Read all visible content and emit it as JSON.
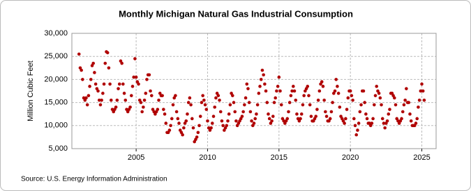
{
  "chart_data": {
    "type": "scatter",
    "title": "Monthly Michigan Natural Gas Industrial Consumption",
    "y_label": "Million Cubic Feet",
    "source": "Source: U.S. Energy Information Administration",
    "color": "#b00000",
    "grid": true,
    "xlim": [
      2000.5,
      2026
    ],
    "ylim": [
      5000,
      30000
    ],
    "xticks": [
      2005,
      2010,
      2015,
      2020,
      2025
    ],
    "yticks": [
      {
        "value": 5000,
        "label": "5,000"
      },
      {
        "value": 10000,
        "label": "10,000"
      },
      {
        "value": 15000,
        "label": "15,000"
      },
      {
        "value": 20000,
        "label": "20,000"
      },
      {
        "value": 25000,
        "label": "25,000"
      },
      {
        "value": 30000,
        "label": "30,000"
      }
    ],
    "x": [
      2001,
      2001.083,
      2001.167,
      2001.25,
      2001.333,
      2001.417,
      2001.5,
      2001.583,
      2001.667,
      2001.75,
      2001.833,
      2001.917,
      2002,
      2002.083,
      2002.167,
      2002.25,
      2002.333,
      2002.417,
      2002.5,
      2002.583,
      2002.667,
      2002.75,
      2002.833,
      2002.917,
      2003,
      2003.083,
      2003.167,
      2003.25,
      2003.333,
      2003.417,
      2003.5,
      2003.583,
      2003.667,
      2003.75,
      2003.833,
      2003.917,
      2004,
      2004.083,
      2004.167,
      2004.25,
      2004.333,
      2004.417,
      2004.5,
      2004.583,
      2004.667,
      2004.75,
      2004.833,
      2004.917,
      2005,
      2005.083,
      2005.167,
      2005.25,
      2005.333,
      2005.417,
      2005.5,
      2005.583,
      2005.667,
      2005.75,
      2005.833,
      2005.917,
      2006,
      2006.083,
      2006.167,
      2006.25,
      2006.333,
      2006.417,
      2006.5,
      2006.583,
      2006.667,
      2006.75,
      2006.833,
      2006.917,
      2007,
      2007.083,
      2007.167,
      2007.25,
      2007.333,
      2007.417,
      2007.5,
      2007.583,
      2007.667,
      2007.75,
      2007.833,
      2007.917,
      2008,
      2008.083,
      2008.167,
      2008.25,
      2008.333,
      2008.417,
      2008.5,
      2008.583,
      2008.667,
      2008.75,
      2008.833,
      2008.917,
      2009,
      2009.083,
      2009.167,
      2009.25,
      2009.333,
      2009.417,
      2009.5,
      2009.583,
      2009.667,
      2009.75,
      2009.833,
      2009.917,
      2010,
      2010.083,
      2010.167,
      2010.25,
      2010.333,
      2010.417,
      2010.5,
      2010.583,
      2010.667,
      2010.75,
      2010.833,
      2010.917,
      2011,
      2011.083,
      2011.167,
      2011.25,
      2011.333,
      2011.417,
      2011.5,
      2011.583,
      2011.667,
      2011.75,
      2011.833,
      2011.917,
      2012,
      2012.083,
      2012.167,
      2012.25,
      2012.333,
      2012.417,
      2012.5,
      2012.583,
      2012.667,
      2012.75,
      2012.833,
      2012.917,
      2013,
      2013.083,
      2013.167,
      2013.25,
      2013.333,
      2013.417,
      2013.5,
      2013.583,
      2013.667,
      2013.75,
      2013.833,
      2013.917,
      2014,
      2014.083,
      2014.167,
      2014.25,
      2014.333,
      2014.417,
      2014.5,
      2014.583,
      2014.667,
      2014.75,
      2014.833,
      2014.917,
      2015,
      2015.083,
      2015.167,
      2015.25,
      2015.333,
      2015.417,
      2015.5,
      2015.583,
      2015.667,
      2015.75,
      2015.833,
      2015.917,
      2016,
      2016.083,
      2016.167,
      2016.25,
      2016.333,
      2016.417,
      2016.5,
      2016.583,
      2016.667,
      2016.75,
      2016.833,
      2016.917,
      2017,
      2017.083,
      2017.167,
      2017.25,
      2017.333,
      2017.417,
      2017.5,
      2017.583,
      2017.667,
      2017.75,
      2017.833,
      2017.917,
      2018,
      2018.083,
      2018.167,
      2018.25,
      2018.333,
      2018.417,
      2018.5,
      2018.583,
      2018.667,
      2018.75,
      2018.833,
      2018.917,
      2019,
      2019.083,
      2019.167,
      2019.25,
      2019.333,
      2019.417,
      2019.5,
      2019.583,
      2019.667,
      2019.75,
      2019.833,
      2019.917,
      2020,
      2020.083,
      2020.167,
      2020.25,
      2020.333,
      2020.417,
      2020.5,
      2020.583,
      2020.667,
      2020.75,
      2020.833,
      2020.917,
      2021,
      2021.083,
      2021.167,
      2021.25,
      2021.333,
      2021.417,
      2021.5,
      2021.583,
      2021.667,
      2021.75,
      2021.833,
      2021.917,
      2022,
      2022.083,
      2022.167,
      2022.25,
      2022.333,
      2022.417,
      2022.5,
      2022.583,
      2022.667,
      2022.75,
      2022.833,
      2022.917,
      2023,
      2023.083,
      2023.167,
      2023.25,
      2023.333,
      2023.417,
      2023.5,
      2023.583,
      2023.667,
      2023.75,
      2023.833,
      2023.917,
      2024,
      2024.083,
      2024.167,
      2024.25,
      2024.333,
      2024.417,
      2024.5,
      2024.583,
      2024.667,
      2024.75,
      2024.833,
      2024.917,
      2025,
      2025.083,
      2025.167
    ],
    "values": [
      25500,
      22500,
      22000,
      20000,
      16000,
      15500,
      16000,
      14500,
      16500,
      18500,
      20000,
      23000,
      23500,
      21500,
      19000,
      18000,
      17500,
      15500,
      14500,
      15500,
      17000,
      19000,
      23500,
      26000,
      25800,
      22500,
      19000,
      15500,
      13500,
      13000,
      13500,
      14000,
      15500,
      18000,
      19000,
      24000,
      23500,
      19000,
      17000,
      15500,
      13500,
      13000,
      13500,
      14000,
      16500,
      18500,
      20500,
      24500,
      20500,
      19500,
      19000,
      15500,
      15000,
      13000,
      14000,
      15500,
      17000,
      20000,
      21000,
      21000,
      17500,
      16500,
      13500,
      13000,
      12500,
      13000,
      13500,
      15500,
      17000,
      16500,
      16500,
      13500,
      12500,
      10500,
      8500,
      8500,
      9000,
      10000,
      11500,
      14500,
      16000,
      16500,
      13000,
      11500,
      10500,
      9000,
      8500,
      8000,
      9500,
      10500,
      11000,
      12500,
      15000,
      16000,
      14500,
      11500,
      9500,
      6500,
      7000,
      7500,
      8500,
      10000,
      12000,
      15000,
      16500,
      15500,
      14500,
      13500,
      11000,
      9500,
      9000,
      9500,
      10500,
      12000,
      14000,
      16000,
      17000,
      16500,
      15500,
      13000,
      11000,
      10000,
      9000,
      9500,
      10000,
      11000,
      12500,
      14500,
      17000,
      16500,
      15000,
      13000,
      11000,
      10000,
      10500,
      11000,
      11500,
      12000,
      13000,
      14500,
      16000,
      19000,
      18000,
      15000,
      13000,
      11000,
      10000,
      10500,
      11500,
      12500,
      14500,
      17000,
      18500,
      20000,
      22000,
      21000,
      19000,
      17500,
      15000,
      12500,
      11500,
      10500,
      11000,
      12000,
      15000,
      16000,
      17500,
      18500,
      20500,
      17500,
      14500,
      11500,
      11000,
      10500,
      11000,
      11500,
      13000,
      15000,
      16500,
      17500,
      18500,
      17500,
      15500,
      12500,
      11500,
      11000,
      11500,
      12500,
      14500,
      16500,
      17500,
      18000,
      18500,
      16500,
      14500,
      12000,
      11000,
      11000,
      11500,
      12000,
      13500,
      15500,
      17500,
      19000,
      19500,
      18500,
      15500,
      13000,
      12000,
      11000,
      11000,
      11500,
      13000,
      15000,
      17000,
      17500,
      20000,
      18500,
      17000,
      14000,
      12000,
      11500,
      11000,
      10500,
      11500,
      13500,
      16000,
      17500,
      17500,
      16500,
      15500,
      11500,
      10000,
      8000,
      9000,
      10500,
      13000,
      14500,
      17500,
      17500,
      15000,
      12500,
      11500,
      10500,
      10500,
      10000,
      10500,
      11500,
      14500,
      16500,
      18500,
      17500,
      17000,
      16000,
      14500,
      11500,
      10500,
      9500,
      10500,
      11000,
      12500,
      13500,
      17000,
      17000,
      16500,
      16000,
      14500,
      11500,
      11000,
      10500,
      11000,
      11500,
      13000,
      14500,
      15500,
      18000,
      15000,
      15000,
      12500,
      11000,
      10000,
      10000,
      10000,
      10500,
      11500,
      14000,
      15500,
      17500,
      19000,
      17500,
      15500
    ]
  }
}
